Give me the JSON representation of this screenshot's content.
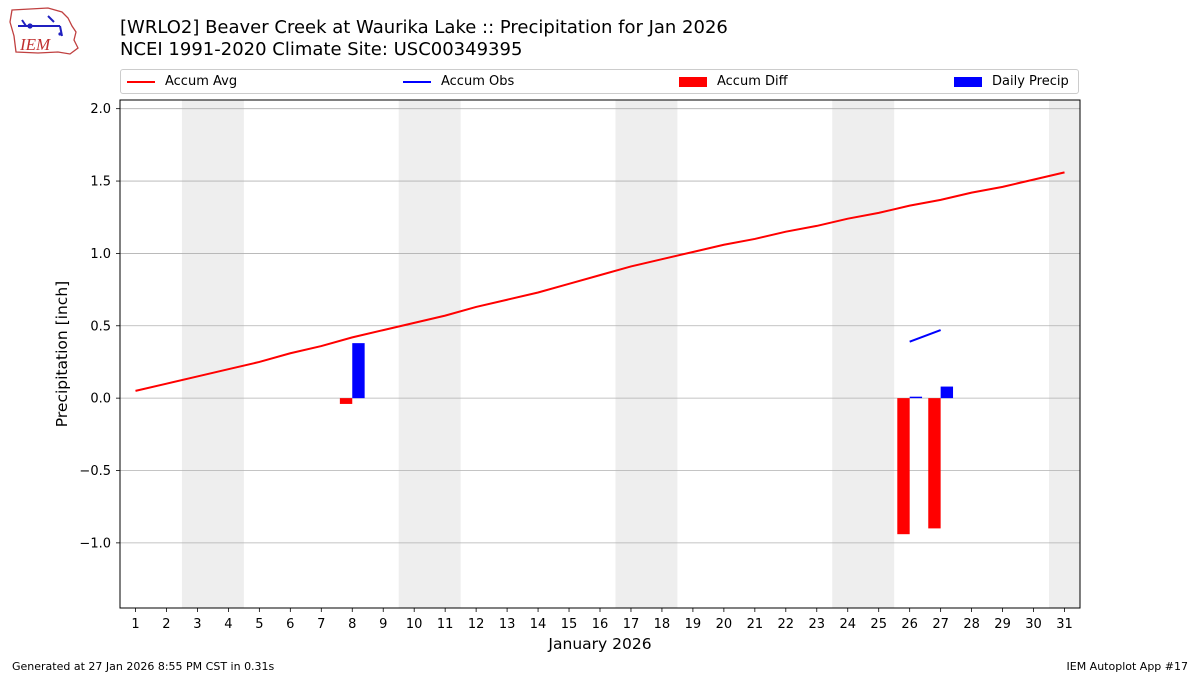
{
  "header": {
    "title_line1": "[WRLO2] Beaver Creek at Waurika Lake :: Precipitation for Jan 2026",
    "title_line2": "NCEI 1991-2020 Climate Site: USC00349395",
    "logo_text": "IEM"
  },
  "footer": {
    "generated": "Generated at 27 Jan 2026 8:55 PM CST in 0.31s",
    "app": "IEM Autoplot App #17"
  },
  "colors": {
    "avg": "#ff0000",
    "obs": "#0000ff",
    "diff": "#ff0000",
    "daily": "#0000ff",
    "weekend": "#eeeeee",
    "grid": "#b0b0b0"
  },
  "chart_data": {
    "type": "bar",
    "title": "[WRLO2] Beaver Creek at Waurika Lake :: Precipitation for Jan 2026",
    "xlabel": "January 2026",
    "ylabel": "Precipitation [inch]",
    "xlim": [
      0.5,
      31.5
    ],
    "ylim": [
      -1.45,
      2.06
    ],
    "grid": "horizontal",
    "x_ticks": [
      1,
      2,
      3,
      4,
      5,
      6,
      7,
      8,
      9,
      10,
      11,
      12,
      13,
      14,
      15,
      16,
      17,
      18,
      19,
      20,
      21,
      22,
      23,
      24,
      25,
      26,
      27,
      28,
      29,
      30,
      31
    ],
    "y_ticks": [
      -1.0,
      -0.5,
      0.0,
      0.5,
      1.0,
      1.5,
      2.0
    ],
    "y_tick_labels": [
      "−1.0",
      "−0.5",
      "0.0",
      "0.5",
      "1.0",
      "1.5",
      "2.0"
    ],
    "weekend_bands": [
      [
        2.5,
        4.5
      ],
      [
        9.5,
        11.5
      ],
      [
        16.5,
        18.5
      ],
      [
        23.5,
        25.5
      ],
      [
        30.5,
        31.5
      ]
    ],
    "legend": [
      "Accum Avg",
      "Accum Obs",
      "Accum Diff",
      "Daily Precip"
    ],
    "series": [
      {
        "name": "Accum Avg",
        "type": "line",
        "x": [
          1,
          2,
          3,
          4,
          5,
          6,
          7,
          8,
          9,
          10,
          11,
          12,
          13,
          14,
          15,
          16,
          17,
          18,
          19,
          20,
          21,
          22,
          23,
          24,
          25,
          26,
          27,
          28,
          29,
          30,
          31
        ],
        "values": [
          0.05,
          0.1,
          0.15,
          0.2,
          0.25,
          0.31,
          0.36,
          0.42,
          0.47,
          0.52,
          0.57,
          0.63,
          0.68,
          0.73,
          0.79,
          0.85,
          0.91,
          0.96,
          1.01,
          1.06,
          1.1,
          1.15,
          1.19,
          1.24,
          1.28,
          1.33,
          1.37,
          1.42,
          1.46,
          1.51,
          1.56
        ]
      },
      {
        "name": "Accum Obs",
        "type": "line",
        "x": [
          26,
          27
        ],
        "values": [
          0.39,
          0.47
        ]
      },
      {
        "name": "Accum Diff",
        "type": "bar",
        "x": [
          8,
          26,
          27
        ],
        "values": [
          -0.04,
          -0.94,
          -0.9
        ]
      },
      {
        "name": "Daily Precip",
        "type": "bar",
        "x": [
          8,
          26,
          27
        ],
        "values": [
          0.38,
          0.01,
          0.08
        ]
      }
    ]
  }
}
